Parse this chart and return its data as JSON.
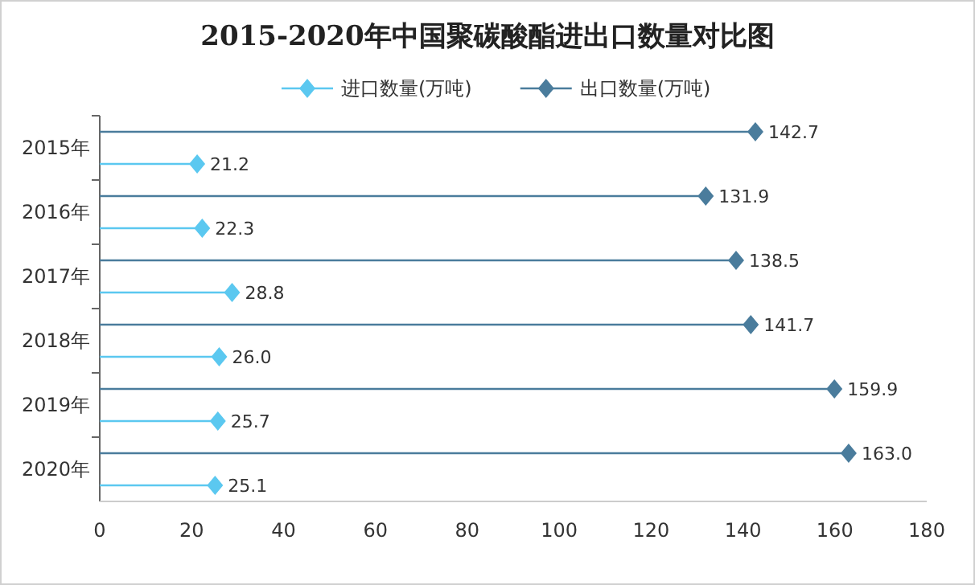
{
  "chart_data": {
    "type": "lollipop",
    "orientation": "horizontal",
    "title": "2015-2020年中国聚碳酸酯进出口数量对比图",
    "categories": [
      "2015年",
      "2016年",
      "2017年",
      "2018年",
      "2019年",
      "2020年"
    ],
    "series": [
      {
        "name": "进口数量(万吨)",
        "color": "#5bc8f0",
        "values": [
          21.2,
          22.3,
          28.8,
          26.0,
          25.7,
          25.1
        ],
        "value_labels": [
          "21.2",
          "22.3",
          "28.8",
          "26.0",
          "25.7",
          "25.1"
        ]
      },
      {
        "name": "出口数量(万吨)",
        "color": "#4a7c9c",
        "values": [
          142.7,
          131.9,
          138.5,
          141.7,
          159.9,
          163.0
        ],
        "value_labels": [
          "142.7",
          "131.9",
          "138.5",
          "141.7",
          "159.9",
          "163.0"
        ]
      }
    ],
    "xlim": [
      0,
      180
    ],
    "xticks": [
      0,
      20,
      40,
      60,
      80,
      100,
      120,
      140,
      160,
      180
    ],
    "legend": "top",
    "marker": "diamond",
    "grid": false
  }
}
